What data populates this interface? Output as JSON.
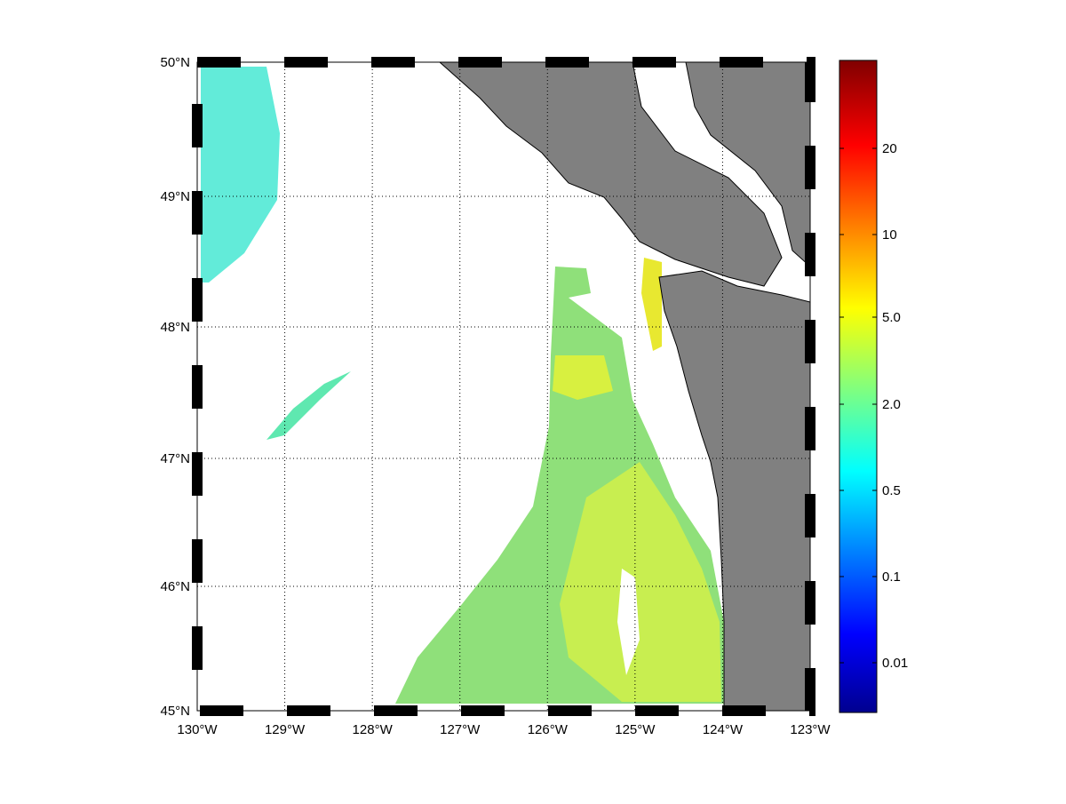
{
  "map": {
    "lat_labels": [
      "50°N",
      "49°N",
      "48°N",
      "47°N",
      "46°N",
      "45°N"
    ],
    "lon_labels": [
      "130°W",
      "129°W",
      "128°W",
      "127°W",
      "126°W",
      "125°W",
      "124°W",
      "123°W"
    ],
    "colorbar": {
      "labels": [
        "20",
        "10",
        "5.0",
        "2.0",
        "0.5",
        "0.1",
        "0.01"
      ]
    }
  }
}
